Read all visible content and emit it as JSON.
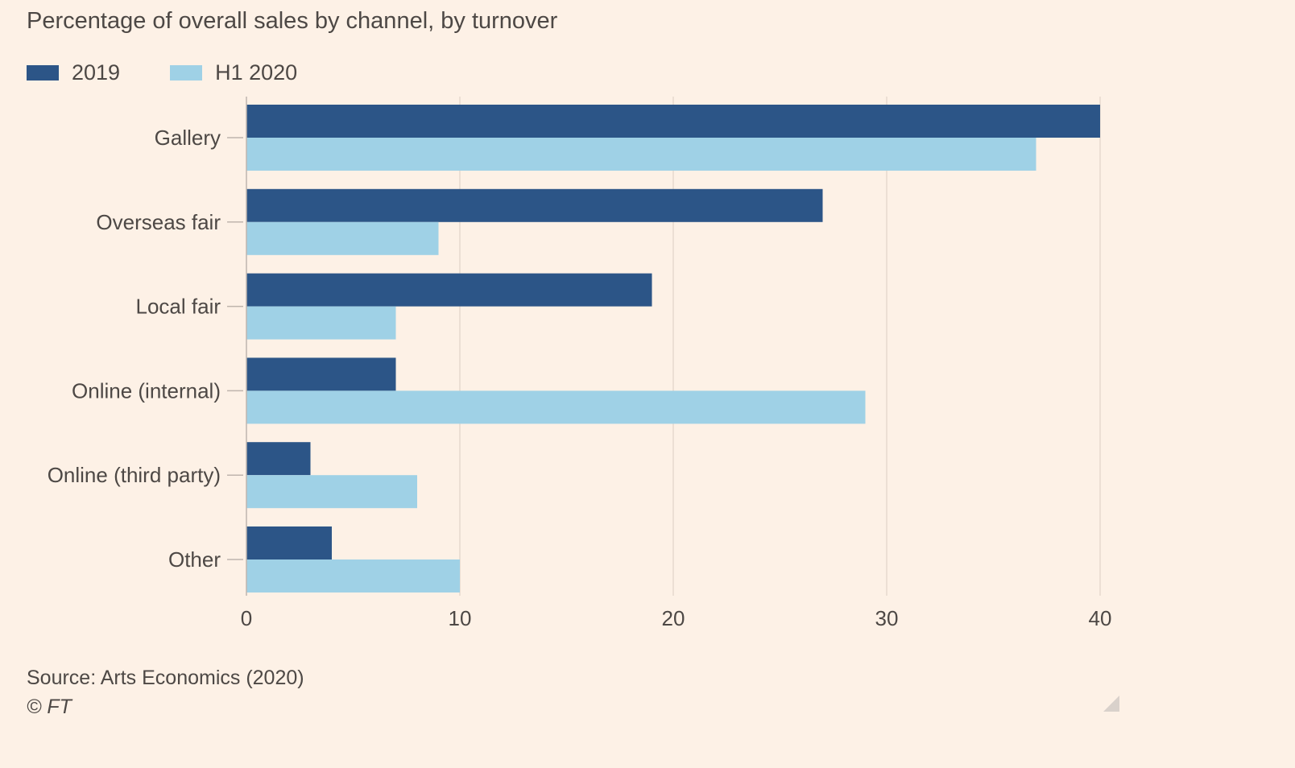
{
  "chart_data": {
    "type": "bar",
    "orientation": "horizontal",
    "title": "Percentage of overall sales by channel, by turnover",
    "categories": [
      "Gallery",
      "Overseas fair",
      "Local fair",
      "Online (internal)",
      "Online (third party)",
      "Other"
    ],
    "series": [
      {
        "name": "2019",
        "color": "#2c5587",
        "values": [
          40,
          27,
          19,
          7,
          3,
          4
        ]
      },
      {
        "name": "H1 2020",
        "color": "#9fd1e6",
        "values": [
          37,
          9,
          7,
          29,
          8,
          10
        ]
      }
    ],
    "xlim": [
      0,
      45
    ],
    "xticks": [
      0,
      10,
      20,
      30,
      40
    ],
    "xlabel": "",
    "ylabel": "",
    "grid": true,
    "legend_position": "top-left",
    "source": "Source: Arts Economics (2020)",
    "copyright": "© FT"
  }
}
